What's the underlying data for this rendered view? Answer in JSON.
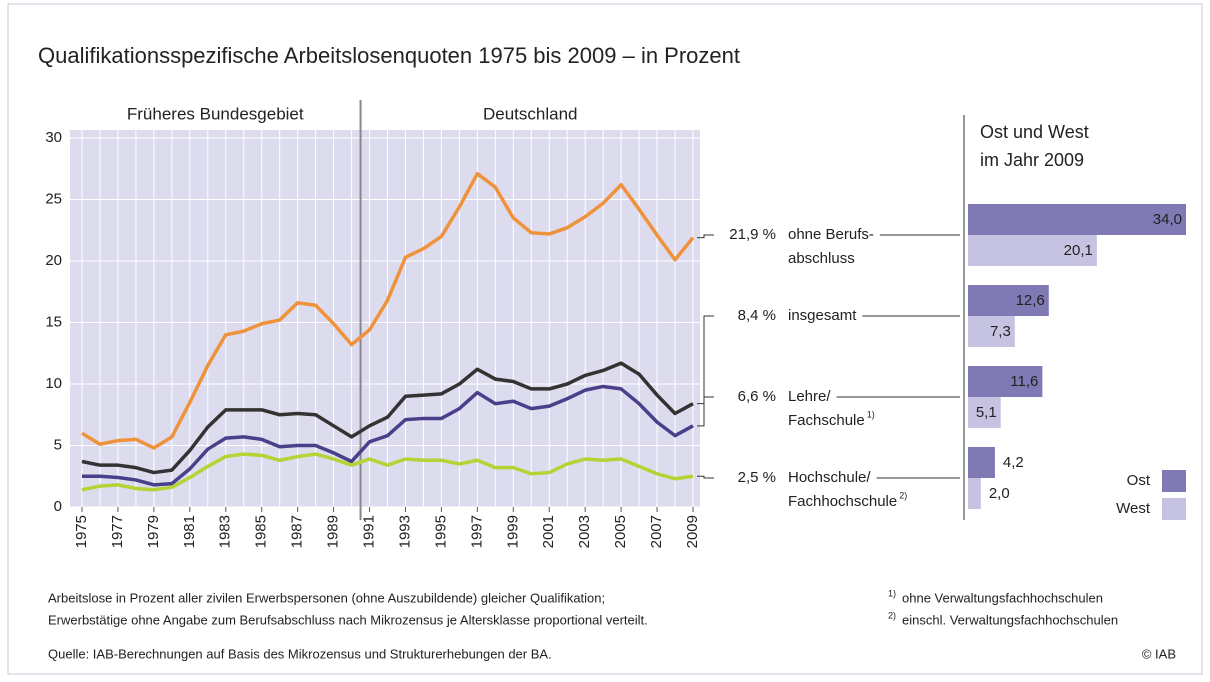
{
  "chart_data": [
    {
      "type": "line",
      "title": "Qualifikationsspezifische Arbeitslosenquoten 1975 bis 2009 – in Prozent",
      "regions": [
        {
          "label": "Früheres Bundesgebiet",
          "from": 1975,
          "to": 1990
        },
        {
          "label": "Deutschland",
          "from": 1991,
          "to": 2009
        }
      ],
      "x": [
        1975,
        1976,
        1977,
        1978,
        1979,
        1980,
        1981,
        1982,
        1983,
        1984,
        1985,
        1986,
        1987,
        1988,
        1989,
        1990,
        1991,
        1992,
        1993,
        1994,
        1995,
        1996,
        1997,
        1998,
        1999,
        2000,
        2001,
        2002,
        2003,
        2004,
        2005,
        2006,
        2007,
        2008,
        2009
      ],
      "xlim": [
        1975,
        2009
      ],
      "xticks": [
        1975,
        1977,
        1979,
        1981,
        1983,
        1985,
        1987,
        1989,
        1991,
        1993,
        1995,
        1997,
        1999,
        2001,
        2003,
        2005,
        2007,
        2009
      ],
      "ylim": [
        0,
        30
      ],
      "yticks": [
        0,
        5,
        10,
        15,
        20,
        25,
        30
      ],
      "grid": true,
      "series": [
        {
          "label_lines": [
            "ohne Berufs-",
            "abschluss"
          ],
          "end_label": "21,9 %",
          "color": "#f0923a",
          "values": [
            6.0,
            5.1,
            5.4,
            5.5,
            4.8,
            5.7,
            8.5,
            11.5,
            14.0,
            14.3,
            14.9,
            15.2,
            16.6,
            16.4,
            14.9,
            13.2,
            14.4,
            16.8,
            20.3,
            21.0,
            22.0,
            24.4,
            27.1,
            26.0,
            23.5,
            22.3,
            22.2,
            22.7,
            23.6,
            24.7,
            26.2,
            24.2,
            22.1,
            20.1,
            21.9
          ]
        },
        {
          "label_lines": [
            "insgesamt"
          ],
          "end_label": "8,4 %",
          "color": "#333333",
          "values": [
            3.7,
            3.4,
            3.4,
            3.2,
            2.8,
            3.0,
            4.6,
            6.5,
            7.9,
            7.9,
            7.9,
            7.5,
            7.6,
            7.5,
            6.6,
            5.7,
            6.6,
            7.3,
            9.0,
            9.1,
            9.2,
            10.0,
            11.2,
            10.4,
            10.2,
            9.6,
            9.6,
            10.0,
            10.7,
            11.1,
            11.7,
            10.8,
            9.1,
            7.6,
            8.4
          ]
        },
        {
          "label_lines": [
            "Lehre/",
            "Fachschule"
          ],
          "note_mark": "1)",
          "end_label": "6,6 %",
          "color": "#4a3f8a",
          "values": [
            2.5,
            2.5,
            2.4,
            2.2,
            1.8,
            1.9,
            3.1,
            4.7,
            5.6,
            5.7,
            5.5,
            4.9,
            5.0,
            5.0,
            4.4,
            3.7,
            5.3,
            5.8,
            7.1,
            7.2,
            7.2,
            8.0,
            9.3,
            8.4,
            8.6,
            8.0,
            8.2,
            8.8,
            9.5,
            9.8,
            9.6,
            8.4,
            6.9,
            5.8,
            6.6
          ]
        },
        {
          "label_lines": [
            "Hochschule/",
            "Fachhochschule"
          ],
          "note_mark": "2)",
          "end_label": "2,5 %",
          "color": "#b5d334",
          "values": [
            1.4,
            1.7,
            1.8,
            1.5,
            1.4,
            1.6,
            2.4,
            3.3,
            4.1,
            4.3,
            4.2,
            3.8,
            4.1,
            4.3,
            3.9,
            3.4,
            3.9,
            3.4,
            3.9,
            3.8,
            3.8,
            3.5,
            3.8,
            3.2,
            3.2,
            2.7,
            2.8,
            3.5,
            3.9,
            3.8,
            3.9,
            3.3,
            2.7,
            2.3,
            2.5
          ]
        }
      ]
    },
    {
      "type": "hbar",
      "title": [
        "Ost und West",
        "im Jahr 2009"
      ],
      "categories": [
        null,
        null,
        null,
        null
      ],
      "xlim": [
        0,
        34
      ],
      "legend": "bottom-right",
      "series": [
        {
          "name": "Ost",
          "color": "#7f79b4",
          "values": [
            34.0,
            12.6,
            11.6,
            4.2
          ],
          "value_labels": [
            "34,0",
            "12,6",
            "11,6",
            "4,2"
          ]
        },
        {
          "name": "West",
          "color": "#c5c3e1",
          "values": [
            20.1,
            7.3,
            5.1,
            2.0
          ],
          "value_labels": [
            "20,1",
            "7,3",
            "5,1",
            "2,0"
          ]
        }
      ]
    }
  ],
  "notes": [
    "Arbeitslose in Prozent aller zivilen Erwerbspersonen (ohne Auszubildende) gleicher Qualifikation;",
    "Erwerbstätige ohne Angabe zum Berufsabschluss nach Mikrozensus je Altersklasse proportional verteilt."
  ],
  "footnotes": [
    {
      "mark": "1)",
      "text": "ohne Verwaltungsfachhochschulen"
    },
    {
      "mark": "2)",
      "text": "einschl. Verwaltungsfachhochschulen"
    }
  ],
  "source": "Quelle: IAB-Berechnungen auf Basis des Mikrozensus und Strukturerhebungen der BA.",
  "copyright": "© IAB"
}
